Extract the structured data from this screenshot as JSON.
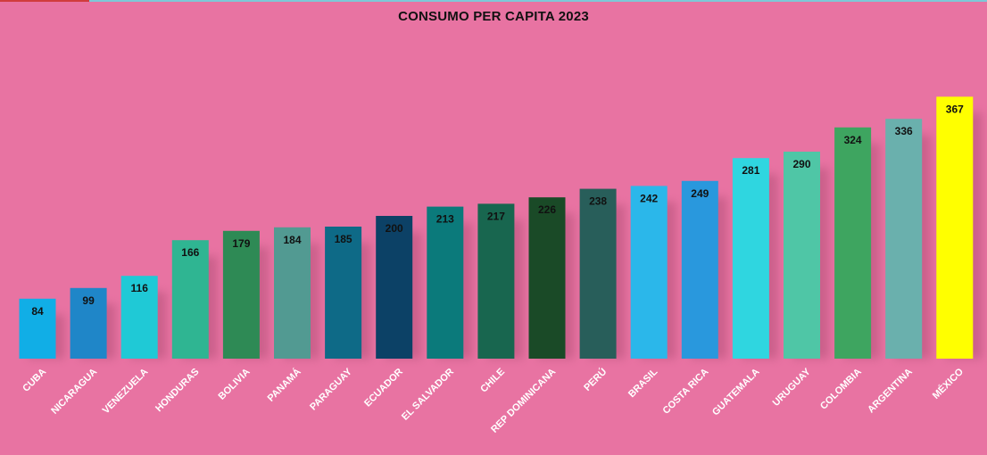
{
  "chart_data": {
    "type": "bar",
    "title": "CONSUMO PER CAPITA 2023",
    "categories": [
      "CUBA",
      "NICARAGUA",
      "VENEZUELA",
      "HONDURAS",
      "BOLIVIA",
      "PANAMÁ",
      "PARAGUAY",
      "ECUADOR",
      "EL SALVADOR",
      "CHILE",
      "REP DOMINICANA",
      "PERÚ",
      "BRASIL",
      "COSTA RICA",
      "GUATEMALA",
      "URUGUAY",
      "COLOMBIA",
      "ARGENTINA",
      "MÉXICO"
    ],
    "values": [
      84,
      99,
      116,
      166,
      179,
      184,
      185,
      200,
      213,
      217,
      226,
      238,
      242,
      249,
      281,
      290,
      324,
      336,
      367
    ],
    "bar_colors": [
      "#11aee6",
      "#1f86c8",
      "#1fc9d6",
      "#2fb592",
      "#2e8a55",
      "#529a92",
      "#0e6a87",
      "#0c4166",
      "#0b7a7b",
      "#18664f",
      "#1a4a27",
      "#285e5a",
      "#2bb7ea",
      "#2998dd",
      "#2fd6e0",
      "#4fc6a6",
      "#3ea560",
      "#6ab0ad",
      "#ffff00"
    ],
    "ylim": [
      0,
      400
    ],
    "grid": false,
    "background": "#e873a2"
  }
}
